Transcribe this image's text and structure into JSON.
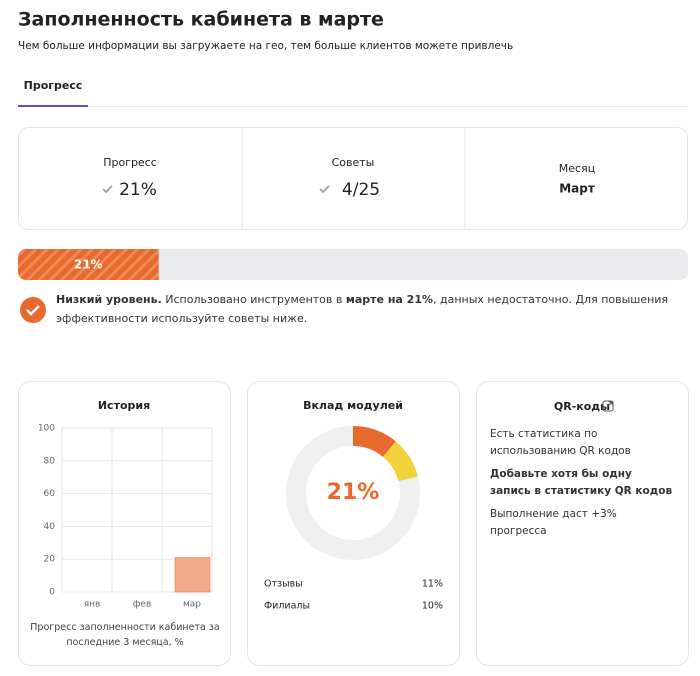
{
  "header": {
    "title": "Заполненность кабинета в марте",
    "subtitle": "Чем больше информации вы загружаете на гео, тем больше клиентов можете привлечь"
  },
  "tabs": [
    "Прогресс"
  ],
  "stats": [
    {
      "label": "Прогресс",
      "value": "21%"
    },
    {
      "label": "Советы",
      "value": "4/25"
    },
    {
      "label": "Месяц",
      "value": "Март"
    }
  ],
  "progress": {
    "value": 21,
    "label": "21%",
    "xlim": [
      0,
      100
    ],
    "color": "#e8692e"
  },
  "notice": [
    {
      "text": "Низкий уровень.",
      "bold": true
    },
    {
      "text": " Использовано инструментов в ",
      "bold": false
    },
    {
      "text": "марте на 21%",
      "bold": true
    },
    {
      "text": ", данных недостаточно. Для повышения эффективности используйте советы ниже.",
      "bold": false
    }
  ],
  "chart_data": [
    {
      "type": "bar",
      "title": "История",
      "categories": [
        "янв",
        "фев",
        "мар"
      ],
      "values": [
        0,
        0,
        21
      ],
      "color": "#f2a98a",
      "ylim": [
        0,
        100
      ],
      "yticks": [
        0,
        20,
        40,
        60,
        80,
        100
      ],
      "grid": true,
      "caption": "Прогресс заполненности кабинета за последние 3 месяца, %"
    },
    {
      "type": "donut",
      "title": "Вклад модулей",
      "center_label": "21%",
      "categories": [
        "Отзывы",
        "Филиалы"
      ],
      "values": [
        11,
        10
      ],
      "value_labels": [
        "11%",
        "10%"
      ],
      "colors": [
        "#e8692e",
        "#f2d23c"
      ]
    }
  ],
  "qr": {
    "title": "QR-коды",
    "lines": [
      {
        "text": "Есть статистика по использованию QR кодов",
        "bold": false
      },
      {
        "text": "Добавьте хотя бы одну запись в статистику QR кодов",
        "bold": true
      },
      {
        "text": "Выполнение даст +3% прогресса",
        "bold": false
      }
    ]
  }
}
